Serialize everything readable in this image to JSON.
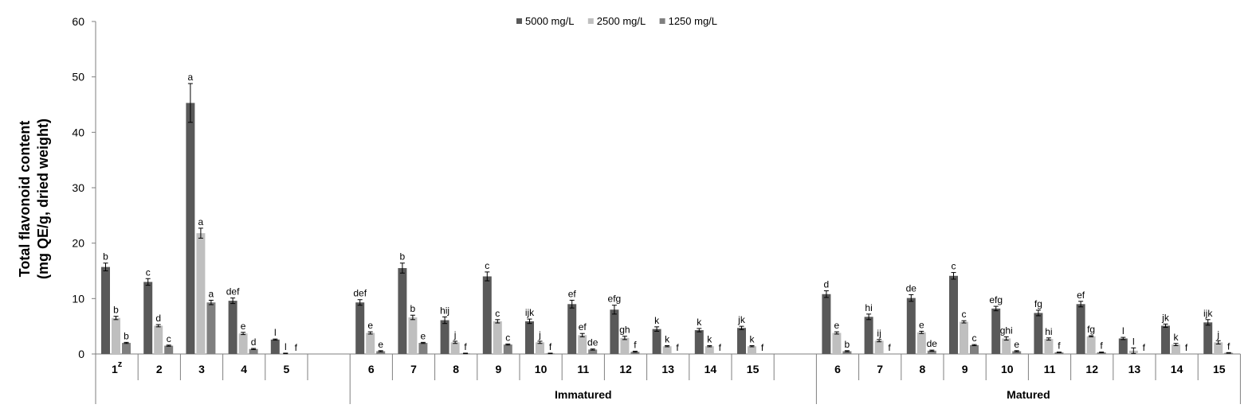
{
  "chart_data": {
    "type": "bar",
    "title": "",
    "ylabel_line1": "Total flavonoid content",
    "ylabel_line2": "(mg QE/g, dried weight)",
    "xlabel": "",
    "ylim": [
      0,
      60
    ],
    "yticks": [
      0,
      10,
      20,
      30,
      40,
      50,
      60
    ],
    "superscript_first": "z",
    "colors": [
      "#595959",
      "#bfbfbf",
      "#7f7f7f"
    ],
    "series_names": [
      "5000 mg/L",
      "2500 mg/L",
      "1250 mg/L"
    ],
    "groups": [
      {
        "name": "",
        "categories": [
          {
            "label": "1",
            "values": [
              15.7,
              6.5,
              2.0
            ],
            "errors": [
              0.7,
              0.3,
              0.1
            ],
            "letters": [
              "b",
              "b",
              "b"
            ]
          },
          {
            "label": "2",
            "values": [
              13.0,
              5.1,
              1.5
            ],
            "errors": [
              0.6,
              0.2,
              0.1
            ],
            "letters": [
              "c",
              "d",
              "c"
            ]
          },
          {
            "label": "3",
            "values": [
              45.3,
              21.8,
              9.3
            ],
            "errors": [
              3.5,
              0.9,
              0.4
            ],
            "letters": [
              "a",
              "a",
              "a"
            ]
          },
          {
            "label": "4",
            "values": [
              9.6,
              3.7,
              0.9
            ],
            "errors": [
              0.5,
              0.2,
              0.1
            ],
            "letters": [
              "def",
              "e",
              "d"
            ]
          },
          {
            "label": "5",
            "values": [
              2.6,
              0.1,
              0.0
            ],
            "errors": [
              0.1,
              0.05,
              0.0
            ],
            "letters": [
              "l",
              "l",
              "f"
            ]
          }
        ]
      },
      {
        "name": "Immatured",
        "categories": [
          {
            "label": "6",
            "values": [
              9.3,
              3.8,
              0.5
            ],
            "errors": [
              0.5,
              0.2,
              0.1
            ],
            "letters": [
              "def",
              "e",
              "e"
            ]
          },
          {
            "label": "7",
            "values": [
              15.5,
              6.6,
              2.0
            ],
            "errors": [
              0.9,
              0.4,
              0.1
            ],
            "letters": [
              "b",
              "b",
              "e"
            ]
          },
          {
            "label": "8",
            "values": [
              6.1,
              2.1,
              0.1
            ],
            "errors": [
              0.6,
              0.2,
              0.05
            ],
            "letters": [
              "hij",
              "j",
              "f"
            ]
          },
          {
            "label": "9",
            "values": [
              14.0,
              5.9,
              1.7
            ],
            "errors": [
              0.8,
              0.3,
              0.1
            ],
            "letters": [
              "c",
              "c",
              "c"
            ]
          },
          {
            "label": "10",
            "values": [
              5.9,
              2.1,
              0.1
            ],
            "errors": [
              0.4,
              0.2,
              0.05
            ],
            "letters": [
              "ijk",
              "j",
              "f"
            ]
          },
          {
            "label": "11",
            "values": [
              9.0,
              3.4,
              0.8
            ],
            "errors": [
              0.7,
              0.3,
              0.1
            ],
            "letters": [
              "ef",
              "ef",
              "de"
            ]
          },
          {
            "label": "12",
            "values": [
              8.0,
              2.9,
              0.4
            ],
            "errors": [
              0.8,
              0.3,
              0.1
            ],
            "letters": [
              "efg",
              "gh",
              "f"
            ]
          },
          {
            "label": "13",
            "values": [
              4.5,
              1.4,
              0.0
            ],
            "errors": [
              0.4,
              0.1,
              0.0
            ],
            "letters": [
              "k",
              "k",
              "f"
            ]
          },
          {
            "label": "14",
            "values": [
              4.3,
              1.4,
              0.0
            ],
            "errors": [
              0.3,
              0.1,
              0.0
            ],
            "letters": [
              "k",
              "k",
              "f"
            ]
          },
          {
            "label": "15",
            "values": [
              4.7,
              1.4,
              0.0
            ],
            "errors": [
              0.3,
              0.1,
              0.0
            ],
            "letters": [
              "jk",
              "k",
              "f"
            ]
          }
        ]
      },
      {
        "name": "Matured",
        "categories": [
          {
            "label": "6",
            "values": [
              10.8,
              3.8,
              0.5
            ],
            "errors": [
              0.6,
              0.2,
              0.1
            ],
            "letters": [
              "d",
              "e",
              "b"
            ]
          },
          {
            "label": "7",
            "values": [
              6.7,
              2.4,
              0.0
            ],
            "errors": [
              0.5,
              0.2,
              0.0
            ],
            "letters": [
              "hi",
              "ij",
              "f"
            ]
          },
          {
            "label": "8",
            "values": [
              10.1,
              3.9,
              0.6
            ],
            "errors": [
              0.6,
              0.2,
              0.1
            ],
            "letters": [
              "de",
              "e",
              "de"
            ]
          },
          {
            "label": "9",
            "values": [
              14.1,
              5.8,
              1.6
            ],
            "errors": [
              0.6,
              0.2,
              0.1
            ],
            "letters": [
              "c",
              "c",
              "c"
            ]
          },
          {
            "label": "10",
            "values": [
              8.2,
              2.8,
              0.5
            ],
            "errors": [
              0.4,
              0.3,
              0.1
            ],
            "letters": [
              "efg",
              "ghi",
              "e"
            ]
          },
          {
            "label": "11",
            "values": [
              7.4,
              2.7,
              0.3
            ],
            "errors": [
              0.5,
              0.2,
              0.05
            ],
            "letters": [
              "fg",
              "hi",
              "f"
            ]
          },
          {
            "label": "12",
            "values": [
              9.0,
              3.2,
              0.3
            ],
            "errors": [
              0.5,
              0.1,
              0.05
            ],
            "letters": [
              "ef",
              "fg",
              "f"
            ]
          },
          {
            "label": "13",
            "values": [
              2.8,
              0.6,
              0.0
            ],
            "errors": [
              0.2,
              0.5,
              0.0
            ],
            "letters": [
              "l",
              "l",
              "f"
            ]
          },
          {
            "label": "14",
            "values": [
              5.1,
              1.7,
              0.0
            ],
            "errors": [
              0.3,
              0.2,
              0.0
            ],
            "letters": [
              "jk",
              "k",
              "f"
            ]
          },
          {
            "label": "15",
            "values": [
              5.7,
              2.1,
              0.2
            ],
            "errors": [
              0.5,
              0.3,
              0.05
            ],
            "letters": [
              "ijk",
              "j",
              "f"
            ]
          }
        ]
      }
    ],
    "legend_position": "top-center",
    "grid": false
  }
}
